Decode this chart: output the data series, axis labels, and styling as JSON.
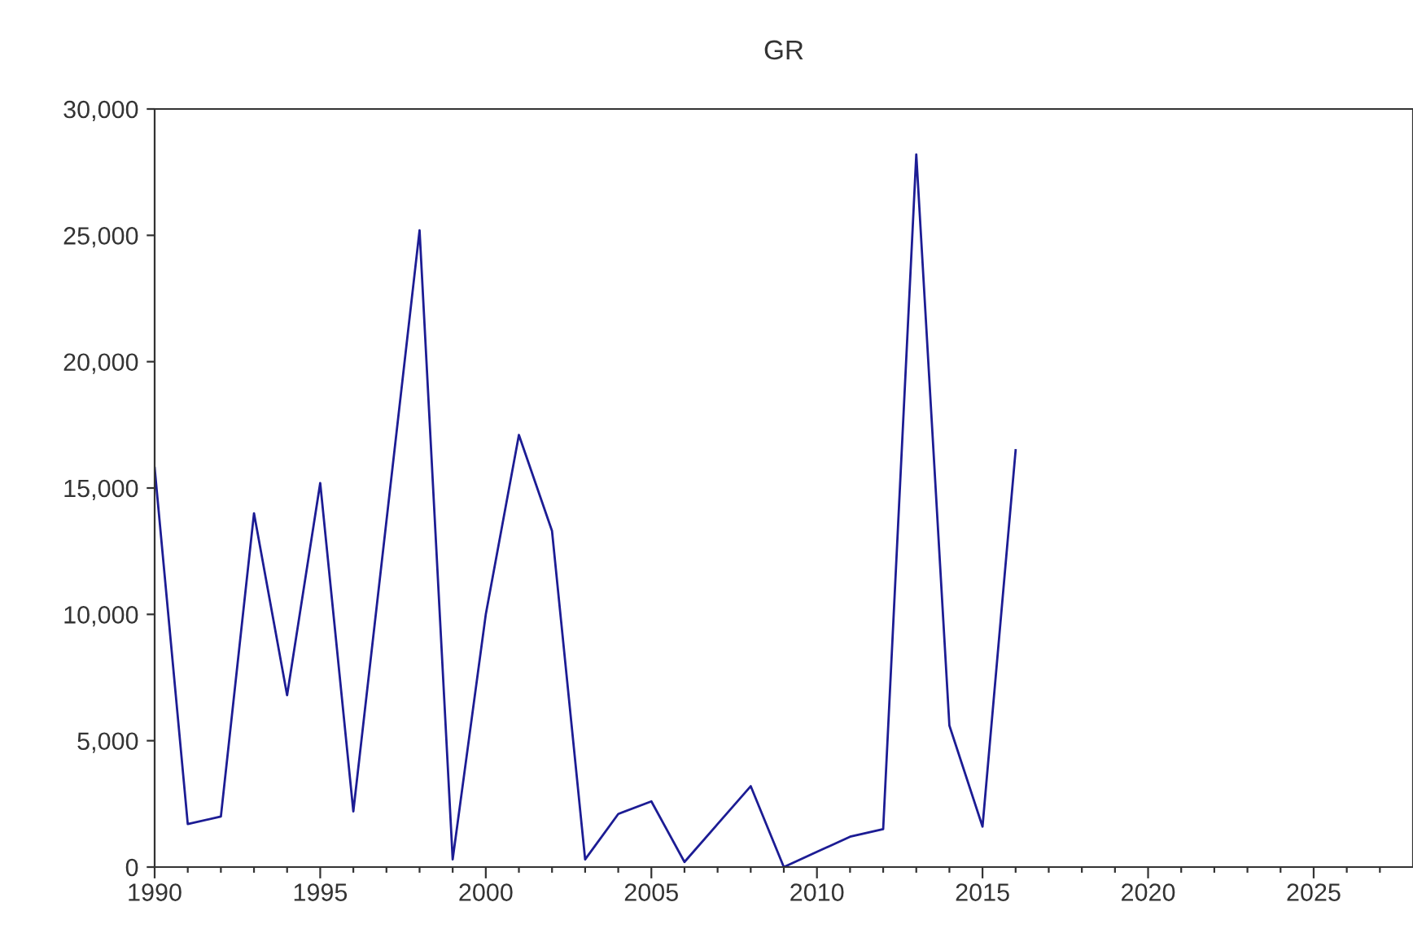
{
  "chart_data": {
    "type": "line",
    "title": "GR",
    "x": [
      1990,
      1991,
      1992,
      1993,
      1994,
      1995,
      1996,
      1997,
      1998,
      1999,
      2000,
      2001,
      2002,
      2003,
      2004,
      2005,
      2006,
      2007,
      2008,
      2009,
      2010,
      2011,
      2012,
      2013,
      2014,
      2015,
      2016
    ],
    "series": [
      {
        "color": "#1c1c94",
        "values": [
          15800,
          1700,
          2000,
          14000,
          6800,
          15200,
          2200,
          13700,
          25200,
          300,
          10000,
          17100,
          13300,
          300,
          2100,
          2600,
          200,
          1700,
          3200,
          0,
          600,
          1200,
          1500,
          28200,
          5600,
          1600,
          16500
        ]
      }
    ],
    "xlim": [
      1990,
      2028
    ],
    "xticks": [
      1990,
      {
        "value": 1991,
        "label": null
      },
      {
        "value": 1992,
        "label": null
      },
      {
        "value": 1993,
        "label": null
      },
      {
        "value": 1994,
        "label": null
      },
      1995,
      {
        "value": 1996,
        "label": null
      },
      {
        "value": 1997,
        "label": null
      },
      {
        "value": 1998,
        "label": null
      },
      {
        "value": 1999,
        "label": null
      },
      2000,
      {
        "value": 2001,
        "label": null
      },
      {
        "value": 2002,
        "label": null
      },
      {
        "value": 2003,
        "label": null
      },
      {
        "value": 2004,
        "label": null
      },
      2005,
      {
        "value": 2006,
        "label": null
      },
      {
        "value": 2007,
        "label": null
      },
      {
        "value": 2008,
        "label": null
      },
      {
        "value": 2009,
        "label": null
      },
      2010,
      {
        "value": 2011,
        "label": null
      },
      {
        "value": 2012,
        "label": null
      },
      {
        "value": 2013,
        "label": null
      },
      {
        "value": 2014,
        "label": null
      },
      2015,
      {
        "value": 2016,
        "label": null
      },
      {
        "value": 2017,
        "label": null
      },
      {
        "value": 2018,
        "label": null
      },
      {
        "value": 2019,
        "label": null
      },
      2020,
      {
        "value": 2021,
        "label": null
      },
      {
        "value": 2022,
        "label": null
      },
      {
        "value": 2023,
        "label": null
      },
      {
        "value": 2024,
        "label": null
      },
      2025,
      {
        "value": 2026,
        "label": null
      },
      {
        "value": 2027,
        "label": null
      }
    ],
    "ylim": [
      0,
      30000
    ],
    "yticks": [
      {
        "value": 0,
        "label": "0"
      },
      {
        "value": 5000,
        "label": "5,000"
      },
      {
        "value": 10000,
        "label": "10,000"
      },
      {
        "value": 15000,
        "label": "15,000"
      },
      {
        "value": 20000,
        "label": "20,000"
      },
      {
        "value": 25000,
        "label": "25,000"
      },
      {
        "value": 30000,
        "label": "30,000"
      }
    ],
    "grid": false,
    "line_style": "solid",
    "marker": "none"
  }
}
